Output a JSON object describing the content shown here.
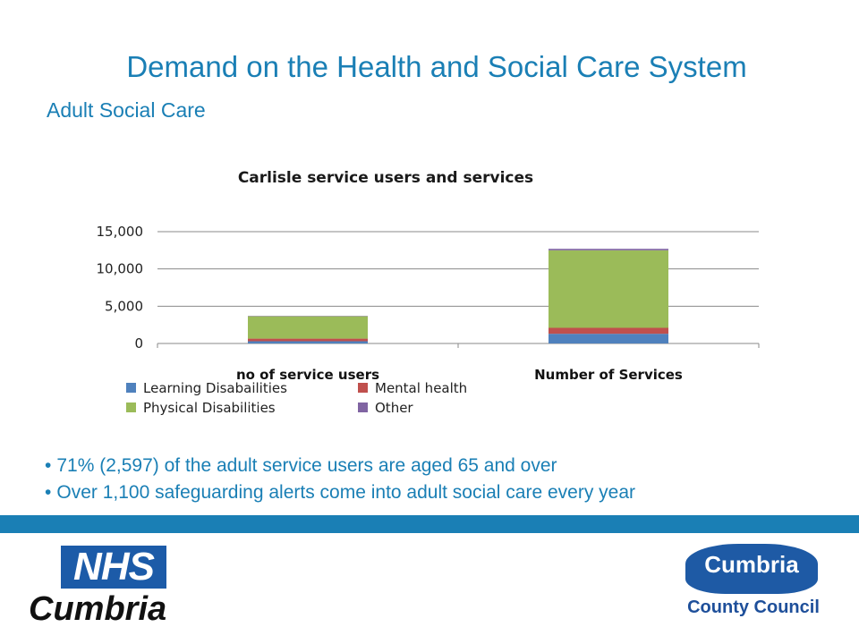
{
  "slide": {
    "title": "Demand on the Health and Social Care System",
    "subtitle": "Adult Social Care",
    "bullets": [
      "71% (2,597) of the adult service users are aged 65 and over",
      "Over 1,100 safeguarding alerts come into adult social care every year"
    ]
  },
  "branding": {
    "nhs_logo_text": "NHS",
    "nhs_region": "Cumbria",
    "council_name": "Cumbria",
    "council_subtitle": "County Council",
    "band_color": "#1a7fb5"
  },
  "chart_data": {
    "type": "bar",
    "stacked": true,
    "title": "Carlisle service users and services",
    "categories": [
      "no of service users",
      "Number of Services"
    ],
    "series": [
      {
        "name": "Learning Disabailities",
        "color": "#4f81bd",
        "values": [
          300,
          1300
        ]
      },
      {
        "name": "Mental health",
        "color": "#c0504d",
        "values": [
          350,
          800
        ]
      },
      {
        "name": "Physical Disabilities",
        "color": "#9bbb59",
        "values": [
          3000,
          10400
        ]
      },
      {
        "name": "Other",
        "color": "#8064a2",
        "values": [
          50,
          200
        ]
      }
    ],
    "ylim": [
      0,
      15000
    ],
    "yticks": [
      0,
      5000,
      10000,
      15000
    ],
    "ytick_labels": [
      "0",
      "5,000",
      "10,000",
      "15,000"
    ],
    "grid": true,
    "legend": "bottom"
  }
}
